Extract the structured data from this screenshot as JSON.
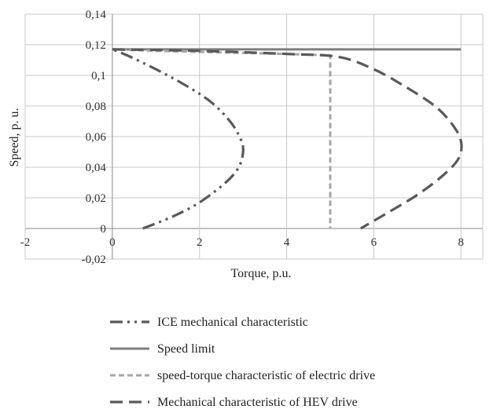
{
  "chart_data": {
    "type": "line",
    "xlabel": "Torque, p.u.",
    "ylabel": "Speed, p. u.",
    "xlim": [
      -2,
      8.5
    ],
    "ylim": [
      -0.02,
      0.14
    ],
    "x_ticks": [
      "-2",
      "0",
      "2",
      "4",
      "6",
      "8"
    ],
    "x_tick_values": [
      -2,
      0,
      2,
      4,
      6,
      8
    ],
    "y_ticks": [
      "-0,02",
      "0",
      "0,02",
      "0,04",
      "0,06",
      "0,08",
      "0,1",
      "0,12",
      "0,14"
    ],
    "y_tick_values": [
      -0.02,
      0,
      0.02,
      0.04,
      0.06,
      0.08,
      0.1,
      0.12,
      0.14
    ],
    "grid": true,
    "legend_position": "bottom",
    "series": [
      {
        "name": "ICE mechanical characteristic",
        "color": "#595959",
        "dash": "dash-dot-dot",
        "points": [
          [
            0.7,
            0
          ],
          [
            1.4,
            0.008
          ],
          [
            2.0,
            0.017
          ],
          [
            2.6,
            0.03
          ],
          [
            2.9,
            0.04
          ],
          [
            3.0,
            0.05
          ],
          [
            2.95,
            0.058
          ],
          [
            2.7,
            0.07
          ],
          [
            2.2,
            0.084
          ],
          [
            1.4,
            0.098
          ],
          [
            0.5,
            0.111
          ],
          [
            0,
            0.117
          ]
        ]
      },
      {
        "name": "Speed limit",
        "color": "#7f7f7f",
        "dash": "solid",
        "points": [
          [
            0,
            0.117
          ],
          [
            8.0,
            0.117
          ]
        ]
      },
      {
        "name": "speed-torque characteristic of electric drive",
        "color": "#a6a6a6",
        "dash": "short-dash",
        "points": [
          [
            0,
            0.117
          ],
          [
            1.0,
            0.116
          ],
          [
            2.5,
            0.115
          ],
          [
            4.0,
            0.114
          ],
          [
            5.0,
            0.113
          ],
          [
            5.0,
            0
          ]
        ]
      },
      {
        "name": "Mechanical characteristic of HEV drive",
        "color": "#595959",
        "dash": "long-dash",
        "points": [
          [
            0,
            0.117
          ],
          [
            2.0,
            0.116
          ],
          [
            4.0,
            0.114
          ],
          [
            5.2,
            0.112
          ],
          [
            6.0,
            0.104
          ],
          [
            6.7,
            0.093
          ],
          [
            7.4,
            0.08
          ],
          [
            7.8,
            0.068
          ],
          [
            8.0,
            0.057
          ],
          [
            7.95,
            0.046
          ],
          [
            7.6,
            0.035
          ],
          [
            7.0,
            0.022
          ],
          [
            6.3,
            0.01
          ],
          [
            5.7,
            0
          ]
        ]
      }
    ]
  }
}
